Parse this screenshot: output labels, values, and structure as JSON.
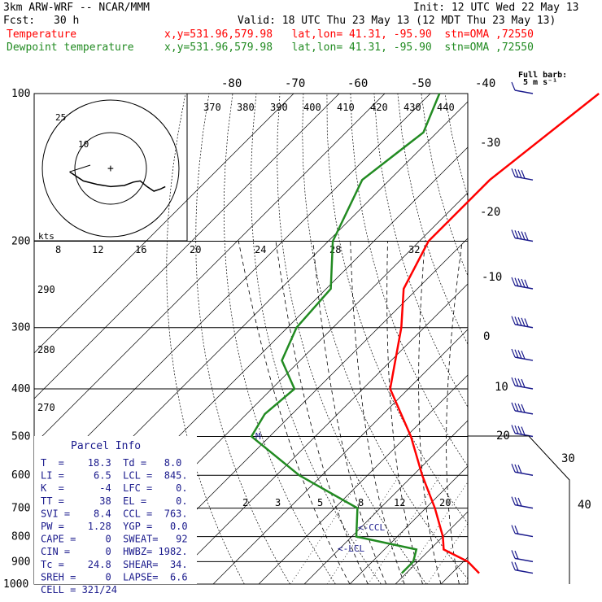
{
  "header": {
    "model": "3km ARW-WRF -- NCAR/MMM",
    "init": "Init: 12 UTC Wed 22 May 13",
    "fcst_label": "Fcst:",
    "fcst_value": "30 h",
    "valid": "Valid: 18 UTC Thu 23 May 13 (12 MDT Thu 23 May 13)",
    "temperature_label": "Temperature",
    "temperature_meta": "x,y=531.96,579.98   lat,lon= 41.31, -95.90  stn=OMA ,72550",
    "dewpoint_label": "Dewpoint temperature",
    "dewpoint_meta": "x,y=531.96,579.98   lat,lon= 41.31, -95.90  stn=OMA ,72550",
    "barb_legend_1": "Full barb:",
    "barb_legend_2": "5 m s⁻¹"
  },
  "colors": {
    "temperature": "#ff0000",
    "dewpoint": "#228b22",
    "barbs": "#1a1a8c",
    "annotation": "#1a1a8c"
  },
  "chart_data": {
    "type": "line",
    "title": "",
    "xlabel": "",
    "ylabel": "",
    "pressure_levels": [
      100,
      200,
      300,
      400,
      500,
      600,
      700,
      800,
      900,
      1000
    ],
    "pressure_labels": [
      "100",
      "200",
      "300",
      "400",
      "500",
      "600",
      "700",
      "800",
      "900",
      "1000"
    ],
    "isotherm_labels": [
      "-80",
      "-70",
      "-60",
      "-50",
      "-40",
      "-30",
      "-20",
      "-10",
      "0",
      "10",
      "20",
      "30",
      "40"
    ],
    "theta_labels": [
      "370",
      "380",
      "390",
      "400",
      "410",
      "420",
      "430",
      "440"
    ],
    "mixing_ratio_labels": [
      "2",
      "3",
      "5",
      "8",
      "12",
      "20"
    ],
    "hodograph_speed_labels": [
      "8",
      "12",
      "16",
      "20",
      "24",
      "28",
      "32"
    ],
    "hodograph_unit": "kts",
    "hodograph_ring_labels": [
      "10",
      "25"
    ],
    "side_labels": [
      "290",
      "280",
      "270"
    ],
    "annotations": [
      "<-CCL",
      "<-LCL",
      "M"
    ],
    "series": [
      {
        "name": "Temperature",
        "color": "#ff0000",
        "points": [
          [
            100,
            -53
          ],
          [
            150,
            -58
          ],
          [
            200,
            -58
          ],
          [
            250,
            -53
          ],
          [
            300,
            -45
          ],
          [
            400,
            -34
          ],
          [
            500,
            -19
          ],
          [
            600,
            -8
          ],
          [
            700,
            2
          ],
          [
            800,
            10
          ],
          [
            850,
            13
          ],
          [
            900,
            21
          ],
          [
            950,
            26
          ]
        ]
      },
      {
        "name": "Dewpoint temperature",
        "color": "#228b22",
        "points": [
          [
            100,
            -88
          ],
          [
            120,
            -83
          ],
          [
            150,
            -86
          ],
          [
            200,
            -79
          ],
          [
            250,
            -69
          ],
          [
            300,
            -68
          ],
          [
            350,
            -64
          ],
          [
            400,
            -55
          ],
          [
            450,
            -56
          ],
          [
            500,
            -54
          ],
          [
            600,
            -35
          ],
          [
            700,
            -15
          ],
          [
            800,
            -9
          ],
          [
            850,
            7
          ],
          [
            900,
            9
          ],
          [
            950,
            9
          ]
        ]
      }
    ],
    "wind_barbs_ms": [
      {
        "p": 100,
        "speed": 5
      },
      {
        "p": 150,
        "speed": 20
      },
      {
        "p": 200,
        "speed": 25
      },
      {
        "p": 250,
        "speed": 25
      },
      {
        "p": 300,
        "speed": 25
      },
      {
        "p": 350,
        "speed": 20
      },
      {
        "p": 400,
        "speed": 20
      },
      {
        "p": 450,
        "speed": 20
      },
      {
        "p": 500,
        "speed": 20
      },
      {
        "p": 600,
        "speed": 15
      },
      {
        "p": 700,
        "speed": 15
      },
      {
        "p": 800,
        "speed": 10
      },
      {
        "p": 900,
        "speed": 10
      },
      {
        "p": 950,
        "speed": 10
      }
    ],
    "hodograph": {
      "points": [
        [
          -36,
          -3
        ],
        [
          -24,
          -11
        ],
        [
          -12,
          -14
        ],
        [
          0,
          -16
        ],
        [
          12,
          -15
        ],
        [
          20,
          -12
        ],
        [
          26,
          -11
        ],
        [
          32,
          -16
        ],
        [
          38,
          -20
        ],
        [
          44,
          -18
        ],
        [
          48,
          -16
        ]
      ]
    }
  },
  "parcel_info": {
    "title": "Parcel Info",
    "rows": [
      "T  =    18.3  Td =   8.0",
      "LI =     6.5  LCL =  845.",
      "K  =      -4  LFC =    0.",
      "TT =      38  EL =     0.",
      "SVI =    8.4  CCL =  763.",
      "PW =    1.28  YGP =   0.0",
      "CAPE =     0  SWEAT=   92",
      "CIN =      0  HWBZ= 1982.",
      "Tc =    24.8  SHEAR=  34.",
      "SREH =     0  LAPSE=  6.6",
      "CELL = 321/24"
    ]
  }
}
